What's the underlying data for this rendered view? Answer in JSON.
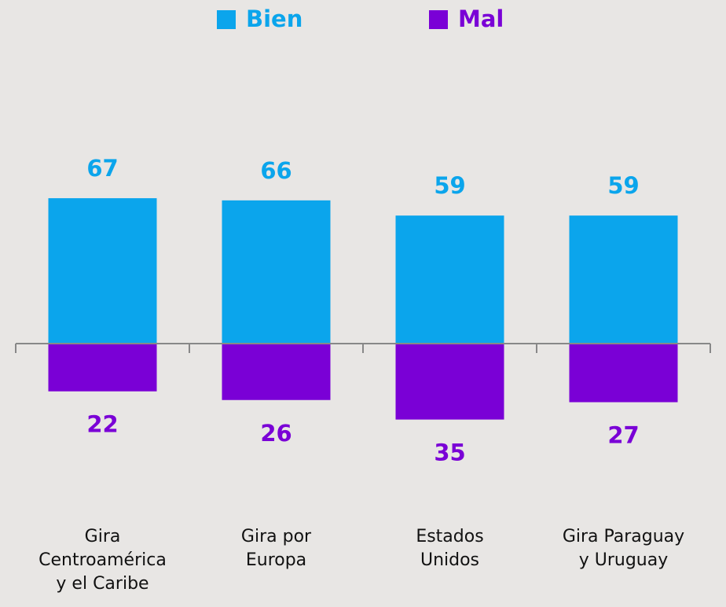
{
  "chart_data": {
    "type": "bar",
    "categories": [
      "Gira\nCentroamérica\ny el Caribe",
      "Gira por\nEuropa",
      "Estados\nUnidos",
      "Gira Paraguay\ny Uruguay"
    ],
    "series": [
      {
        "name": "Bien",
        "color": "#0ba5ec",
        "values": [
          67,
          66,
          59,
          59
        ]
      },
      {
        "name": "Mal",
        "color": "#7a00d6",
        "values": [
          -22,
          -26,
          -35,
          -27
        ],
        "value_labels": [
          "22",
          "26",
          "35",
          "27"
        ]
      }
    ],
    "ylim": [
      -100,
      100
    ],
    "legend": "top"
  }
}
